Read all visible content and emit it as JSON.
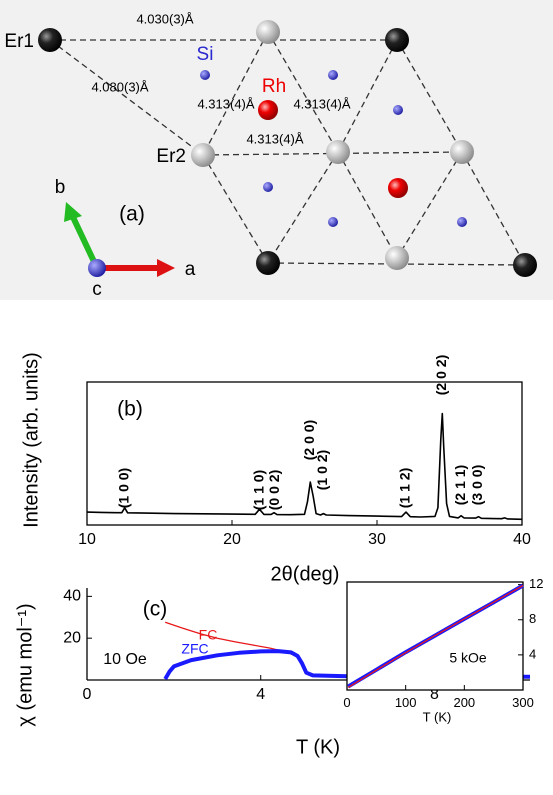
{
  "panel_a": {
    "label": "(a)",
    "atoms": [
      "Er1",
      "Si",
      "Rh",
      "Er2"
    ],
    "distances": [
      "4.030(3)Å",
      "4.080(3)Å",
      "4.313(4)Å",
      "4.313(4)Å",
      "4.313(4)Å"
    ],
    "axes": [
      "b",
      "a",
      "c"
    ]
  },
  "chart_data": [
    {
      "type": "line",
      "panel_label": "(b)",
      "x_label": "2θ(deg)",
      "y_label": "Intensity (arb. units)",
      "color": "#000000",
      "xlim": [
        10,
        40
      ],
      "xticks": [
        10,
        20,
        30,
        40
      ],
      "ylim": [
        0,
        100
      ],
      "x": [
        10,
        11,
        12,
        12.4,
        12.6,
        12.8,
        14,
        16,
        18,
        20,
        21.6,
        21.9,
        22.2,
        22.7,
        22.9,
        23.1,
        24,
        25,
        25.2,
        25.4,
        25.6,
        25.8,
        26.1,
        26.3,
        26.5,
        28,
        30,
        31.7,
        32,
        32.3,
        33,
        34,
        34.2,
        34.4,
        34.5,
        34.6,
        34.8,
        35,
        35.6,
        35.8,
        36,
        36.8,
        37,
        37.2,
        38,
        38.6,
        38.8,
        39,
        40
      ],
      "values": [
        9,
        8.8,
        8.6,
        8.6,
        12,
        8.5,
        8.3,
        8,
        7.8,
        7.6,
        7.5,
        11,
        7.4,
        7.4,
        8.6,
        7.3,
        7.2,
        7.5,
        16,
        30,
        20,
        8,
        7,
        8,
        7,
        6.6,
        6.2,
        5.9,
        9,
        5.8,
        5.6,
        6,
        12,
        60,
        78,
        55,
        15,
        6,
        5,
        6.5,
        5,
        4.8,
        5.8,
        4.7,
        4.5,
        4.4,
        5,
        4.3,
        4
      ],
      "annotations": [
        {
          "text": "(1 0 0)",
          "x": 12.6
        },
        {
          "text": "(1 1 0)",
          "x": 21.9
        },
        {
          "text": "(0 0 2)",
          "x": 23
        },
        {
          "text": "(2 0 0)",
          "x": 25.4
        },
        {
          "text": "(1 0 2)",
          "x": 26.3
        },
        {
          "text": "(1 1 2)",
          "x": 32
        },
        {
          "text": "(2 0 2)",
          "x": 34.5
        },
        {
          "text": "(2 1 1)",
          "x": 35.8
        },
        {
          "text": "(3 0 0)",
          "x": 37
        }
      ]
    },
    {
      "type": "line",
      "panel_label": "(c)",
      "x_label": "T (K)",
      "y_label": "χ (emu mol⁻¹)",
      "xlim": [
        0,
        10.2
      ],
      "xticks": [
        0,
        4,
        8
      ],
      "ylim": [
        0,
        44
      ],
      "yticks": [
        20,
        40
      ],
      "annotations": [
        {
          "text": "10 Oe"
        }
      ],
      "series": [
        {
          "name": "FC",
          "color": "#e8191b",
          "x": [
            1.8,
            2.2,
            2.6,
            3,
            3.4,
            3.8,
            4.2,
            4.6,
            4.8,
            4.9,
            5.0,
            5.1,
            5.3,
            6,
            7,
            8,
            9,
            10.2
          ],
          "values": [
            27.6,
            24.8,
            22.2,
            20,
            18.3,
            16.8,
            15.3,
            13.4,
            11.5,
            9.5,
            5,
            2.8,
            2.2,
            2,
            1.9,
            1.9,
            1.8,
            1.8
          ]
        },
        {
          "name": "ZFC",
          "color": "#1a1aff",
          "x": [
            1.8,
            1.9,
            2,
            2.4,
            3,
            3.5,
            4,
            4.4,
            4.7,
            4.85,
            4.95,
            5.05,
            5.2,
            6,
            7,
            8,
            9,
            10.2
          ],
          "values": [
            0.5,
            4,
            6.5,
            9.5,
            11.8,
            13,
            13.7,
            13.8,
            13.2,
            11.5,
            8,
            3.5,
            2.2,
            1.8,
            1.7,
            1.7,
            1.6,
            1.6
          ]
        }
      ]
    },
    {
      "type": "line",
      "x_label": "T (K)",
      "xlim": [
        0,
        300
      ],
      "xticks": [
        0,
        100,
        200,
        300
      ],
      "ylim": [
        0,
        12.3
      ],
      "yticks": [
        4,
        8,
        12
      ],
      "y_axis": "right",
      "annotations": [
        {
          "text": "5 kOe"
        }
      ],
      "series": [
        {
          "color": "#1a1aff",
          "x": [
            2,
            50,
            100,
            150,
            200,
            250,
            300
          ],
          "values": [
            0.4,
            2.3,
            4.3,
            6.2,
            8.1,
            10.0,
            11.9
          ]
        },
        {
          "color": "#e8191b",
          "x": [
            2,
            50,
            100,
            150,
            200,
            250,
            300
          ],
          "values": [
            0.3,
            2.25,
            4.25,
            6.2,
            8.1,
            10.0,
            11.9
          ]
        }
      ]
    }
  ]
}
